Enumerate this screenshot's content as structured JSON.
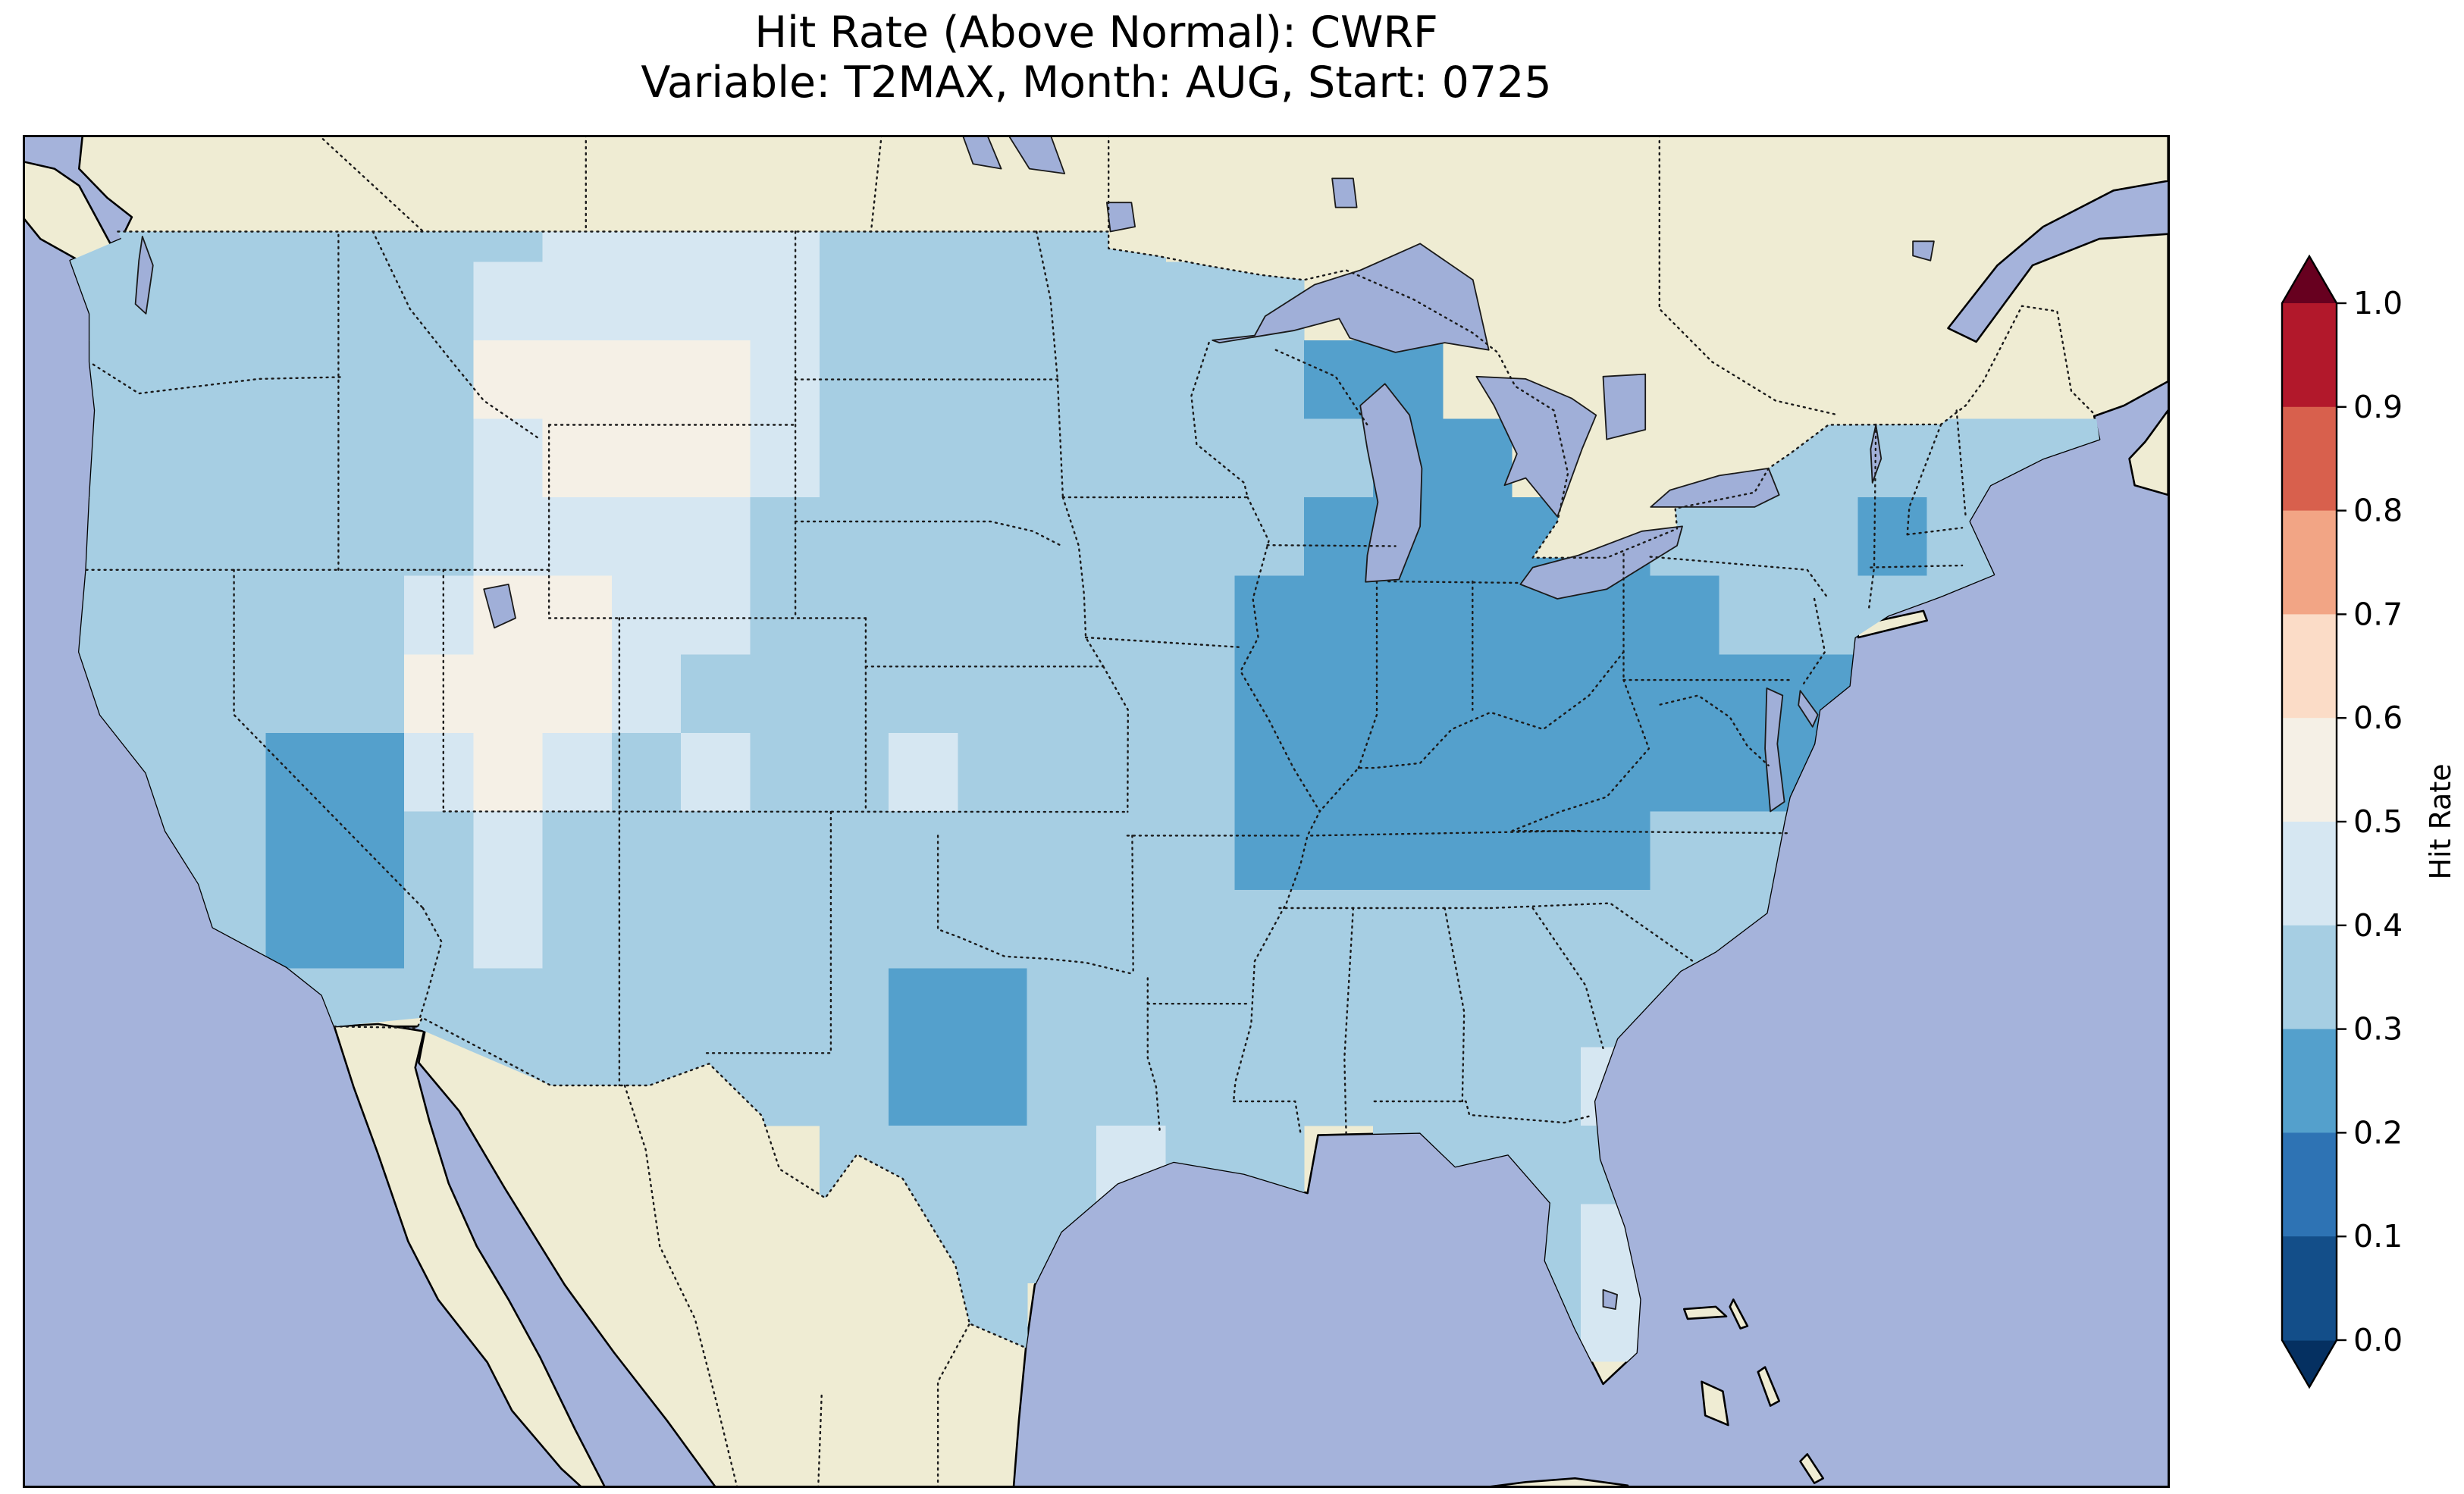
{
  "title": {
    "line1": "Hit Rate (Above Normal): CWRF",
    "line2": "Variable: T2MAX, Month: AUG, Start: 0725"
  },
  "colorbar": {
    "label": "Hit Rate",
    "tick_labels": [
      "1.0",
      "0.9",
      "0.8",
      "0.7",
      "0.6",
      "0.5",
      "0.4",
      "0.3",
      "0.2",
      "0.1",
      "0.0"
    ]
  },
  "colors": {
    "ocean": "#a5b3db",
    "land": "#efecd3",
    "lake": "#a0afd8",
    "coastline": "#000000",
    "border_dots": "#1b1b1b",
    "background": "#ffffff",
    "title_text": "#000000"
  },
  "chart_data": {
    "type": "heatmap",
    "title": "Hit Rate (Above Normal): CWRF",
    "subtitle": "Variable: T2MAX, Month: AUG, Start: 0725",
    "metric": "Hit Rate (Above Normal)",
    "model": "CWRF",
    "variable": "T2MAX",
    "month": "AUG",
    "start": "0725",
    "colorbar": {
      "label": "Hit Rate",
      "ticks": [
        0.0,
        0.1,
        0.2,
        0.3,
        0.4,
        0.5,
        0.6,
        0.7,
        0.8,
        0.9,
        1.0
      ],
      "range": [
        0.0,
        1.0
      ],
      "extend": "both",
      "colormap": "RdBu_r-like (dark blue = low, white = middle, dark red = high)",
      "bin_colors": [
        "#134e89",
        "#2e73b4",
        "#54a0cc",
        "#a6cee3",
        "#d6e7f2",
        "#f5f0e6",
        "#fbdcc7",
        "#f2a585",
        "#d8604d",
        "#b2182b"
      ],
      "under_color": "#053061",
      "over_color": "#67001f",
      "position": "right"
    },
    "map": {
      "region": "Continental United States, with surrounding Canada, Mexico, Atlantic and Pacific shown as context",
      "extent_lon": [
        -126,
        -65
      ],
      "extent_lat": [
        23,
        51
      ],
      "state_borders": "dotted",
      "national_borders": "dotted",
      "coastlines": "solid"
    },
    "grid": {
      "description": "Approximate CONUS hit-rate field read from the map. Each character is one cell; digit d means hit rate in [d/10,(d+1)/10); '.' = outside CONUS (no data). Rows run top (lat 50) to bottom (lat 24), 1.625 deg per row; columns run west (lon -125) to east (lon -66), ~1.97 deg per column.",
      "nrows": 16,
      "ncols": 30,
      "rows": [
        "3333333444433333..............",
        "333333444443333333............",
        "33333355554333333322..........",
        "333333455543333333322...333333",
        "333333444433333333222223332333",
        "333334554433333332222222333333",
        "333335554333333332222222222...",
        "33322454343343333222222222....",
        ".3322343333333333222222333....",
        ".332234333333333333333333.....",
        ".33333333333223333333333......",
        ".....333333322333333334.......",
        "...........3333433.3333.......",
        "............333......34.......",
        ".............3.......34.......",
        ".....................3........"
      ]
    },
    "regional_summary": [
      "Most of CONUS: hit rate 0.3-0.4 (light blue)",
      "Ohio Valley / Kentucky / Tennessee / Illinois / Indiana / Ohio / West Virginia / Virginia-Maryland coast: 0.2-0.3 (darker steel blue)",
      "Wyoming-Montana high plains and central-southern Utah: 0.5-0.6 (near-white local maxima)",
      "Fringes of the light patches, central Florida, Georgia coast: 0.4-0.5",
      "Smaller 0.2-0.3 patches: southern Nevada / western Arizona border, central Texas, upper Michigan / northern Wisconsin, near New York City"
    ]
  }
}
